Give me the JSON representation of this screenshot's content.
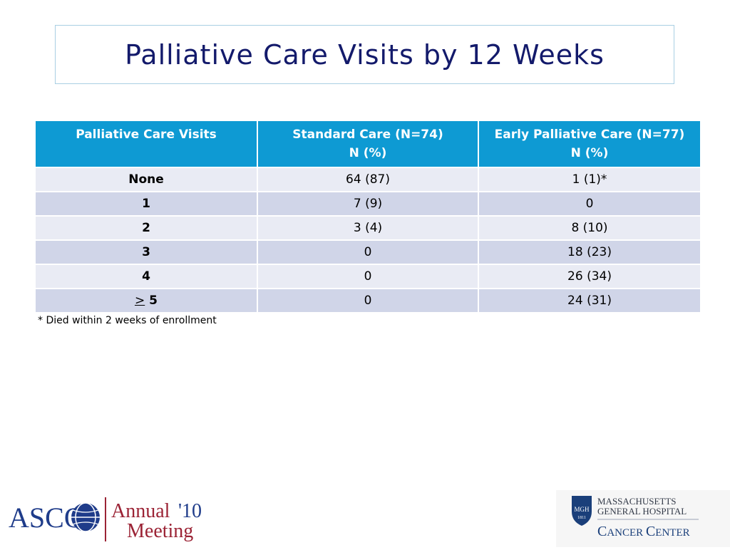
{
  "title": "Palliative Care Visits by 12 Weeks",
  "table": {
    "headers": [
      {
        "line1": "Palliative Care Visits",
        "line2": ""
      },
      {
        "line1": "Standard Care (N=74)",
        "line2": "N (%)"
      },
      {
        "line1": "Early Palliative Care (N=77)",
        "line2": "N (%)"
      }
    ],
    "rows": [
      {
        "label_prefix": "",
        "label": "None",
        "standard": "64 (87)",
        "early": "1 (1)*"
      },
      {
        "label_prefix": "",
        "label": "1",
        "standard": "7 (9)",
        "early": "0"
      },
      {
        "label_prefix": "",
        "label": "2",
        "standard": "3 (4)",
        "early": "8 (10)"
      },
      {
        "label_prefix": "",
        "label": "3",
        "standard": "0",
        "early": "18 (23)"
      },
      {
        "label_prefix": "",
        "label": "4",
        "standard": "0",
        "early": "26 (34)"
      },
      {
        "label_prefix": ">",
        "label": "5",
        "standard": "0",
        "early": "24 (31)"
      }
    ]
  },
  "footnote": "* Died within 2 weeks of enrollment",
  "logos": {
    "asco": {
      "name": "ASCO",
      "year": "'10",
      "line1": "Annual",
      "line2": "Meeting"
    },
    "mgh": {
      "badge": "MGH",
      "badge_year": "1811",
      "line1": "MASSACHUSETTS",
      "line2": "GENERAL HOSPITAL",
      "line3_c1": "C",
      "line3_rest1": "ANCER ",
      "line3_c2": "C",
      "line3_rest2": "ENTER"
    }
  },
  "colors": {
    "title_text": "#131a6b",
    "header_bg": "#0e9ad3",
    "row_light": "#e9ebf4",
    "row_dark": "#d0d5e8",
    "asco_blue": "#1f3c8a",
    "asco_red": "#9b2335",
    "mgh_blue": "#1a3f7a"
  }
}
